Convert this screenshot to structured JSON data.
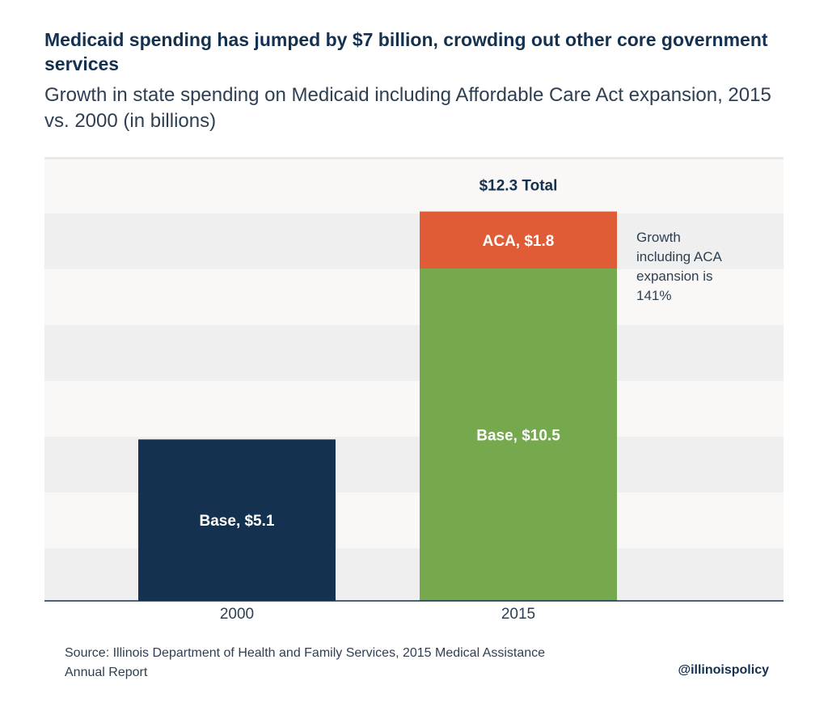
{
  "header": {
    "title": "Medicaid spending has jumped by $7 billion, crowding out other core government services",
    "subtitle": "Growth in state spending on Medicaid including Affordable Care Act expansion, 2015 vs. 2000 (in billions)"
  },
  "chart_data": {
    "type": "bar",
    "stacked": true,
    "categories": [
      "2000",
      "2015"
    ],
    "series": [
      {
        "name": "Base",
        "values": [
          5.1,
          10.5
        ],
        "labels": [
          "Base, $5.1",
          "Base, $10.5"
        ],
        "colors": [
          "#14314f",
          "#76a84e"
        ]
      },
      {
        "name": "ACA",
        "values": [
          0,
          1.8
        ],
        "labels": [
          "",
          "ACA, $1.8"
        ],
        "colors": [
          "#e05c36",
          "#e05c36"
        ]
      }
    ],
    "total_label": "$12.3 Total",
    "annotation": [
      "Growth",
      "including ACA",
      "expansion is",
      "141%"
    ],
    "ylim": [
      0,
      14
    ],
    "grid": "alternating bands",
    "colors": {
      "band_light": "#f9f8f7",
      "band_dark": "#efefef",
      "axis": "#14314f",
      "text": "#2e3f52"
    }
  },
  "footer": {
    "source": "Source: Illinois Department of Health and Family Services, 2015 Medical Assistance Annual Report",
    "handle": "@illinoispolicy"
  }
}
